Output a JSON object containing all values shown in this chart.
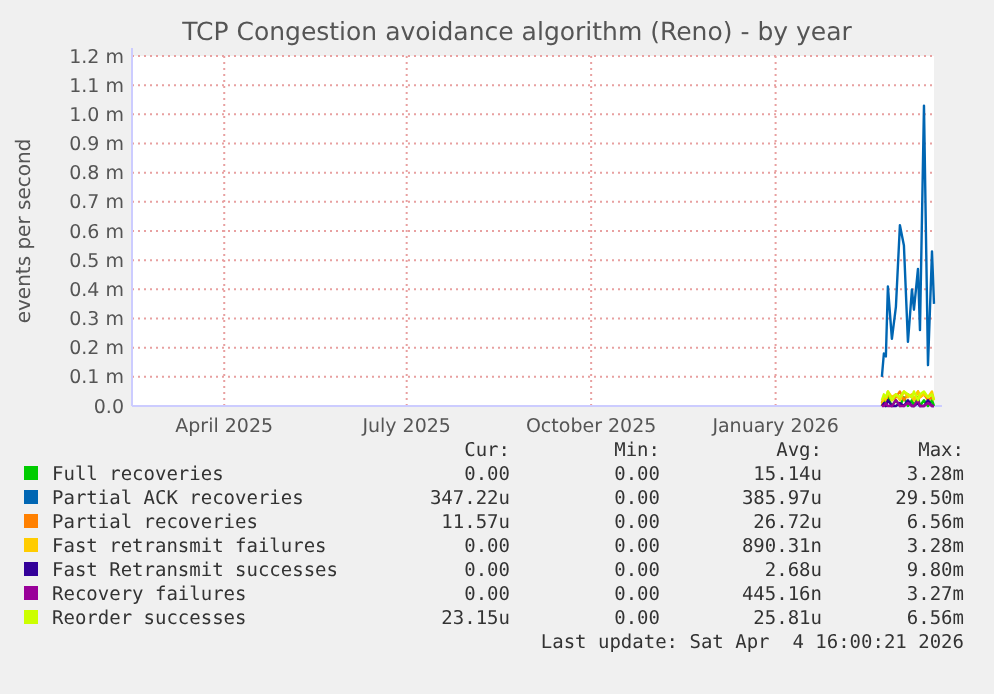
{
  "chart_data": {
    "type": "line",
    "title": "TCP Congestion avoidance algorithm (Reno) - by year",
    "ylabel": "events per second",
    "x": [
      "2026-03-09",
      "2026-03-10",
      "2026-03-11",
      "2026-03-12",
      "2026-03-14",
      "2026-03-16",
      "2026-03-18",
      "2026-03-20",
      "2026-03-22",
      "2026-03-24",
      "2026-03-25",
      "2026-03-27",
      "2026-03-28",
      "2026-03-30",
      "2026-04-01",
      "2026-04-03",
      "2026-04-04"
    ],
    "xlim": [
      "2025-02-28",
      "2026-04-04"
    ],
    "xticks": [
      {
        "value": "2025-04-15",
        "label": "April 2025"
      },
      {
        "value": "2025-07-15",
        "label": "July 2025"
      },
      {
        "value": "2025-10-15",
        "label": "October 2025"
      },
      {
        "value": "2026-01-15",
        "label": "January 2026"
      }
    ],
    "ylim": [
      0,
      1.2
    ],
    "yticks": [
      {
        "value": 0,
        "label": "0.0"
      },
      {
        "value": 0.1,
        "label": "0.1 m"
      },
      {
        "value": 0.2,
        "label": "0.2 m"
      },
      {
        "value": 0.3,
        "label": "0.3 m"
      },
      {
        "value": 0.4,
        "label": "0.4 m"
      },
      {
        "value": 0.5,
        "label": "0.5 m"
      },
      {
        "value": 0.6,
        "label": "0.6 m"
      },
      {
        "value": 0.7,
        "label": "0.7 m"
      },
      {
        "value": 0.8,
        "label": "0.8 m"
      },
      {
        "value": 0.9,
        "label": "0.9 m"
      },
      {
        "value": 1.0,
        "label": "1.0 m"
      },
      {
        "value": 1.1,
        "label": "1.1 m"
      },
      {
        "value": 1.2,
        "label": "1.2 m"
      }
    ],
    "grid": true,
    "legend": "bottom",
    "line_style": "solid",
    "marker": "none",
    "series": [
      {
        "name": "Full recoveries",
        "color": "#00cc00",
        "values": [
          0,
          0.02,
          0,
          0.03,
          0,
          0.02,
          0,
          0.03,
          0,
          0.02,
          0,
          0.03,
          0,
          0.02,
          0,
          0.02,
          0
        ]
      },
      {
        "name": "Partial ACK recoveries",
        "color": "#0066b3",
        "values": [
          0.1,
          0.18,
          0.17,
          0.41,
          0.23,
          0.34,
          0.62,
          0.55,
          0.22,
          0.4,
          0.33,
          0.47,
          0.26,
          1.03,
          0.14,
          0.53,
          0.35
        ]
      },
      {
        "name": "Partial recoveries",
        "color": "#ff8000",
        "values": [
          0.01,
          0.03,
          0.02,
          0.04,
          0.02,
          0.03,
          0.05,
          0.02,
          0.04,
          0.03,
          0.02,
          0.05,
          0.03,
          0.04,
          0.02,
          0.03,
          0.02
        ]
      },
      {
        "name": "Fast retransmit failures",
        "color": "#ffcc00",
        "values": [
          0,
          0.03,
          0.02,
          0.05,
          0.03,
          0.04,
          0.02,
          0.05,
          0.03,
          0.04,
          0.02,
          0.05,
          0.03,
          0.04,
          0.03,
          0.05,
          0.02
        ]
      },
      {
        "name": "Fast Retransmit successes",
        "color": "#330099",
        "values": [
          0,
          0.01,
          0,
          0.02,
          0,
          0,
          0.01,
          0,
          0.02,
          0,
          0,
          0.01,
          0,
          0,
          0.02,
          0,
          0
        ]
      },
      {
        "name": "Recovery failures",
        "color": "#990099",
        "values": [
          0,
          0,
          0.01,
          0,
          0,
          0.02,
          0,
          0,
          0.01,
          0,
          0,
          0.02,
          0,
          0,
          0.01,
          0,
          0
        ]
      },
      {
        "name": "Reorder successes",
        "color": "#ccff00",
        "values": [
          0.02,
          0.04,
          0.03,
          0.05,
          0.02,
          0.04,
          0.03,
          0.05,
          0.04,
          0.03,
          0.05,
          0.02,
          0.04,
          0.05,
          0.03,
          0.04,
          0.02
        ]
      }
    ],
    "annotations": [
      "Cur:",
      "Min:",
      "Avg:",
      "Max:",
      "0.00",
      "0.00",
      "15.14u",
      "3.28m",
      "347.22u",
      "0.00",
      "385.97u",
      "29.50m",
      "11.57u",
      "0.00",
      "26.72u",
      "6.56m",
      "0.00",
      "0.00",
      "890.31n",
      "3.28m",
      "0.00",
      "0.00",
      "2.68u",
      "9.80m",
      "0.00",
      "0.00",
      "445.16n",
      "3.27m",
      "23.15u",
      "0.00",
      "25.81u",
      "6.56m",
      "Last update: Sat Apr  4 16:00:21 2026"
    ]
  }
}
